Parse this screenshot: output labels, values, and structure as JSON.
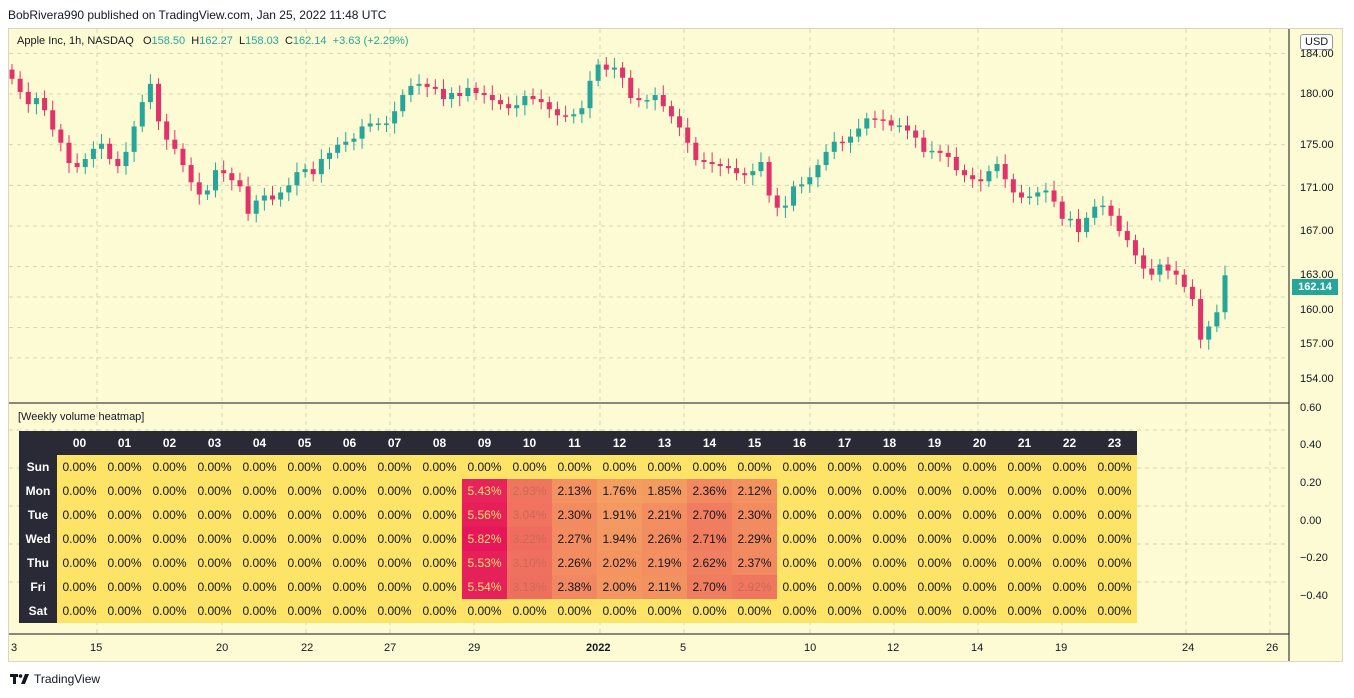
{
  "header": {
    "published_by": "BobRivera990 published on TradingView.com, Jan 25, 2022 11:48 UTC"
  },
  "legend": {
    "symbol": "Apple Inc, 1h, NASDAQ",
    "o_label": "O",
    "o": "158.50",
    "h_label": "H",
    "h": "162.27",
    "l_label": "L",
    "l": "158.03",
    "c_label": "C",
    "c": "162.14",
    "change": "+3.63 (+2.29%)"
  },
  "currency": "USD",
  "last_price": "162.14",
  "price_axis": [
    "184.00",
    "180.00",
    "175.00",
    "171.00",
    "167.00",
    "163.00",
    "160.00",
    "157.00",
    "154.00"
  ],
  "pane_axis": [
    "0.60",
    "0.40",
    "0.20",
    "0.00",
    "−0.20",
    "−0.40"
  ],
  "x_axis": [
    "3",
    "15",
    "20",
    "22",
    "27",
    "29",
    "2022",
    "5",
    "10",
    "12",
    "14",
    "19",
    "24",
    "26"
  ],
  "indicator": {
    "title": "[Weekly volume heatmap]",
    "hours": [
      "00",
      "01",
      "02",
      "03",
      "04",
      "05",
      "06",
      "07",
      "08",
      "09",
      "10",
      "11",
      "12",
      "13",
      "14",
      "15",
      "16",
      "17",
      "18",
      "19",
      "20",
      "21",
      "22",
      "23"
    ],
    "days": [
      "Sun",
      "Mon",
      "Tue",
      "Wed",
      "Thu",
      "Fri",
      "Sat"
    ],
    "values": {
      "Sun": [
        "0.00%",
        "0.00%",
        "0.00%",
        "0.00%",
        "0.00%",
        "0.00%",
        "0.00%",
        "0.00%",
        "0.00%",
        "0.00%",
        "0.00%",
        "0.00%",
        "0.00%",
        "0.00%",
        "0.00%",
        "0.00%",
        "0.00%",
        "0.00%",
        "0.00%",
        "0.00%",
        "0.00%",
        "0.00%",
        "0.00%",
        "0.00%"
      ],
      "Mon": [
        "0.00%",
        "0.00%",
        "0.00%",
        "0.00%",
        "0.00%",
        "0.00%",
        "0.00%",
        "0.00%",
        "0.00%",
        "5.43%",
        "2.93%",
        "2.13%",
        "1.76%",
        "1.85%",
        "2.36%",
        "2.12%",
        "0.00%",
        "0.00%",
        "0.00%",
        "0.00%",
        "0.00%",
        "0.00%",
        "0.00%",
        "0.00%"
      ],
      "Tue": [
        "0.00%",
        "0.00%",
        "0.00%",
        "0.00%",
        "0.00%",
        "0.00%",
        "0.00%",
        "0.00%",
        "0.00%",
        "5.56%",
        "3.04%",
        "2.30%",
        "1.91%",
        "2.21%",
        "2.70%",
        "2.30%",
        "0.00%",
        "0.00%",
        "0.00%",
        "0.00%",
        "0.00%",
        "0.00%",
        "0.00%",
        "0.00%"
      ],
      "Wed": [
        "0.00%",
        "0.00%",
        "0.00%",
        "0.00%",
        "0.00%",
        "0.00%",
        "0.00%",
        "0.00%",
        "0.00%",
        "5.82%",
        "3.22%",
        "2.27%",
        "1.94%",
        "2.26%",
        "2.71%",
        "2.29%",
        "0.00%",
        "0.00%",
        "0.00%",
        "0.00%",
        "0.00%",
        "0.00%",
        "0.00%",
        "0.00%"
      ],
      "Thu": [
        "0.00%",
        "0.00%",
        "0.00%",
        "0.00%",
        "0.00%",
        "0.00%",
        "0.00%",
        "0.00%",
        "0.00%",
        "5.53%",
        "3.10%",
        "2.26%",
        "2.02%",
        "2.19%",
        "2.62%",
        "2.37%",
        "0.00%",
        "0.00%",
        "0.00%",
        "0.00%",
        "0.00%",
        "0.00%",
        "0.00%",
        "0.00%"
      ],
      "Fri": [
        "0.00%",
        "0.00%",
        "0.00%",
        "0.00%",
        "0.00%",
        "0.00%",
        "0.00%",
        "0.00%",
        "0.00%",
        "5.54%",
        "3.13%",
        "2.38%",
        "2.00%",
        "2.11%",
        "2.70%",
        "2.92%",
        "0.00%",
        "0.00%",
        "0.00%",
        "0.00%",
        "0.00%",
        "0.00%",
        "0.00%",
        "0.00%"
      ],
      "Sat": [
        "0.00%",
        "0.00%",
        "0.00%",
        "0.00%",
        "0.00%",
        "0.00%",
        "0.00%",
        "0.00%",
        "0.00%",
        "0.00%",
        "0.00%",
        "0.00%",
        "0.00%",
        "0.00%",
        "0.00%",
        "0.00%",
        "0.00%",
        "0.00%",
        "0.00%",
        "0.00%",
        "0.00%",
        "0.00%",
        "0.00%",
        "0.00%"
      ]
    }
  },
  "colors": {
    "up": "#26a69a",
    "down": "#e2326a",
    "bg": "#fcfbd4",
    "heat_low": "#fde466",
    "heat_high": "#e5175a"
  },
  "footer": {
    "brand": "TradingView"
  },
  "chart_data": {
    "type": "candlestick",
    "symbol": "Apple Inc, 1h, NASDAQ",
    "y_ticks": [
      184,
      180,
      175,
      171,
      167,
      163,
      160,
      157,
      154
    ],
    "closes": [
      181.5,
      180.2,
      179.0,
      179.6,
      178.4,
      176.5,
      175.2,
      173.2,
      172.8,
      173.6,
      174.6,
      175.1,
      173.6,
      172.9,
      174.3,
      176.8,
      179.2,
      181.0,
      177.3,
      175.5,
      174.6,
      173.0,
      171.3,
      170.1,
      170.5,
      172.5,
      172.2,
      171.5,
      170.9,
      168.2,
      169.5,
      170.0,
      169.6,
      170.3,
      171.0,
      172.3,
      172.6,
      172.1,
      173.6,
      174.2,
      175.0,
      175.3,
      175.6,
      176.8,
      177.1,
      177.1,
      177.1,
      178.3,
      179.9,
      180.8,
      181.0,
      180.7,
      180.5,
      179.5,
      180.1,
      179.8,
      180.6,
      180.1,
      179.9,
      179.4,
      179.0,
      178.6,
      178.9,
      179.8,
      179.5,
      179.2,
      178.5,
      177.9,
      177.8,
      178.0,
      178.6,
      181.3,
      182.9,
      182.4,
      182.6,
      181.6,
      179.6,
      179.4,
      179.4,
      179.9,
      178.8,
      177.8,
      176.7,
      175.2,
      173.5,
      173.3,
      173.1,
      172.9,
      172.7,
      172.2,
      172.0,
      172.4,
      173.3,
      170.0,
      168.8,
      169.0,
      170.9,
      171.1,
      171.8,
      173.0,
      174.3,
      175.3,
      175.2,
      175.8,
      176.6,
      177.6,
      177.5,
      177.4,
      176.9,
      176.9,
      176.4,
      175.7,
      174.3,
      174.4,
      174.2,
      173.8,
      172.5,
      172.0,
      171.6,
      171.4,
      172.4,
      173.1,
      171.6,
      170.3,
      169.8,
      169.9,
      170.3,
      170.5,
      169.4,
      167.7,
      167.7,
      166.4,
      167.8,
      168.9,
      169.0,
      168.0,
      166.5,
      165.6,
      164.1,
      162.8,
      162.2,
      163.2,
      162.6,
      162.2,
      161.0,
      159.8,
      155.8,
      157.1,
      158.5,
      162.14
    ],
    "unit": "USD"
  }
}
